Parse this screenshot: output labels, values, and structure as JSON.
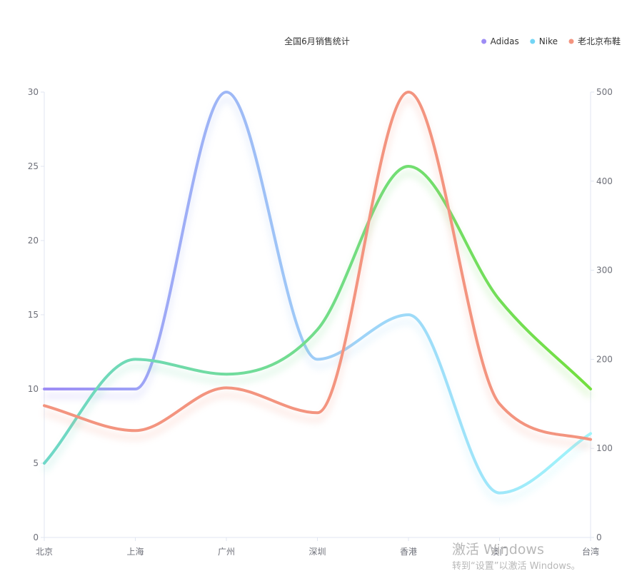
{
  "chart_data": {
    "type": "line",
    "smooth": true,
    "title": "全国6月销售统计",
    "categories": [
      "北京",
      "上海",
      "广州",
      "深圳",
      "香港",
      "澳门",
      "台湾"
    ],
    "y_left": {
      "min": 0,
      "max": 30,
      "ticks": [
        0,
        5,
        10,
        15,
        20,
        25,
        30
      ]
    },
    "y_right": {
      "min": 0,
      "max": 500,
      "ticks": [
        0,
        100,
        200,
        300,
        400,
        500
      ]
    },
    "legend": {
      "position": "top-right"
    },
    "grid": false,
    "series": [
      {
        "name": "Adidas",
        "axis": "left",
        "values": [
          10,
          10,
          30,
          12,
          15,
          3,
          7
        ],
        "legend_color": "#9d8cf5",
        "gradient": [
          "#9d8cf5",
          "#9ecdf7",
          "#9ff5fb"
        ]
      },
      {
        "name": "Nike",
        "axis": "left",
        "values": [
          5,
          12,
          11,
          14,
          25,
          16,
          10
        ],
        "legend_color": "#73d5f5",
        "gradient": [
          "#6fd8c8",
          "#72dd8a",
          "#73df3e"
        ]
      },
      {
        "name": "老北京布鞋",
        "axis": "right",
        "values": [
          148,
          120,
          168,
          140,
          500,
          150,
          110
        ],
        "legend_color": "#f3947f",
        "gradient": [
          "#f3947f",
          "#f3947f"
        ]
      }
    ]
  },
  "watermark": {
    "main": "激活 Windows",
    "sub": "转到“设置”以激活 Windows。"
  }
}
